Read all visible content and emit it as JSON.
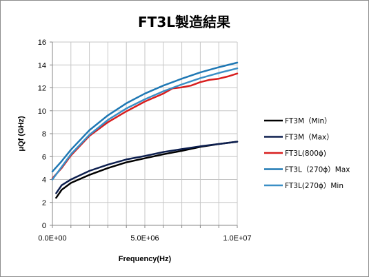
{
  "chart_data": {
    "type": "line",
    "title": "FT3L製造結果",
    "xlabel": "Frequency(Hz)",
    "ylabel": "μQf (GHz)",
    "xlim": [
      0,
      10000000
    ],
    "ylim": [
      0,
      16
    ],
    "x_ticks": [
      0,
      1000000,
      2000000,
      3000000,
      4000000,
      5000000,
      6000000,
      7000000,
      8000000,
      9000000,
      10000000
    ],
    "x_tick_labels": [
      "0.0E+00",
      "",
      "",
      "",
      "",
      "5.0E+06",
      "",
      "",
      "",
      "",
      "1.0E+07"
    ],
    "y_ticks": [
      0,
      2,
      4,
      6,
      8,
      10,
      12,
      14,
      16
    ],
    "y_tick_labels": [
      "0",
      "2",
      "4",
      "6",
      "8",
      "10",
      "12",
      "14",
      "16"
    ],
    "grid": true,
    "legend_position": "right",
    "series": [
      {
        "name": "FT3M（Min）",
        "color": "#000000",
        "x": [
          200000,
          500000,
          1000000,
          2000000,
          3000000,
          4000000,
          5000000,
          6000000,
          7000000,
          8000000,
          9000000,
          10000000
        ],
        "y": [
          2.4,
          3.1,
          3.7,
          4.4,
          5.0,
          5.5,
          5.85,
          6.2,
          6.5,
          6.85,
          7.1,
          7.3
        ]
      },
      {
        "name": "FT3M（Max）",
        "color": "#0d1f4f",
        "x": [
          200000,
          500000,
          1000000,
          2000000,
          3000000,
          4000000,
          5000000,
          6000000,
          7000000,
          8000000,
          9000000,
          10000000
        ],
        "y": [
          2.8,
          3.5,
          4.0,
          4.75,
          5.3,
          5.75,
          6.05,
          6.4,
          6.65,
          6.9,
          7.1,
          7.3
        ]
      },
      {
        "name": "FT3L(800ϕ)",
        "color": "#d81e1e",
        "x": [
          0,
          500000,
          1000000,
          2000000,
          3000000,
          4000000,
          5000000,
          6000000,
          6500000,
          7000000,
          7500000,
          8000000,
          8500000,
          9000000,
          9500000,
          10000000
        ],
        "y": [
          4.1,
          5.0,
          6.1,
          7.8,
          9.0,
          9.95,
          10.8,
          11.5,
          11.95,
          12.05,
          12.2,
          12.5,
          12.7,
          12.8,
          13.0,
          13.25
        ]
      },
      {
        "name": "FT3L（270ϕ）Max",
        "color": "#1f78b4",
        "x": [
          0,
          500000,
          1000000,
          2000000,
          3000000,
          4000000,
          5000000,
          6000000,
          7000000,
          8000000,
          9000000,
          10000000
        ],
        "y": [
          4.7,
          5.6,
          6.6,
          8.3,
          9.6,
          10.65,
          11.5,
          12.2,
          12.8,
          13.35,
          13.8,
          14.2
        ]
      },
      {
        "name": "FT3L(270ϕ）Min",
        "color": "#3a8fc6",
        "x": [
          0,
          500000,
          1000000,
          2000000,
          3000000,
          4000000,
          5000000,
          6000000,
          7000000,
          8000000,
          9000000,
          10000000
        ],
        "y": [
          4.0,
          5.1,
          6.2,
          7.9,
          9.2,
          10.2,
          11.0,
          11.7,
          12.3,
          12.85,
          13.3,
          13.7
        ]
      }
    ]
  }
}
